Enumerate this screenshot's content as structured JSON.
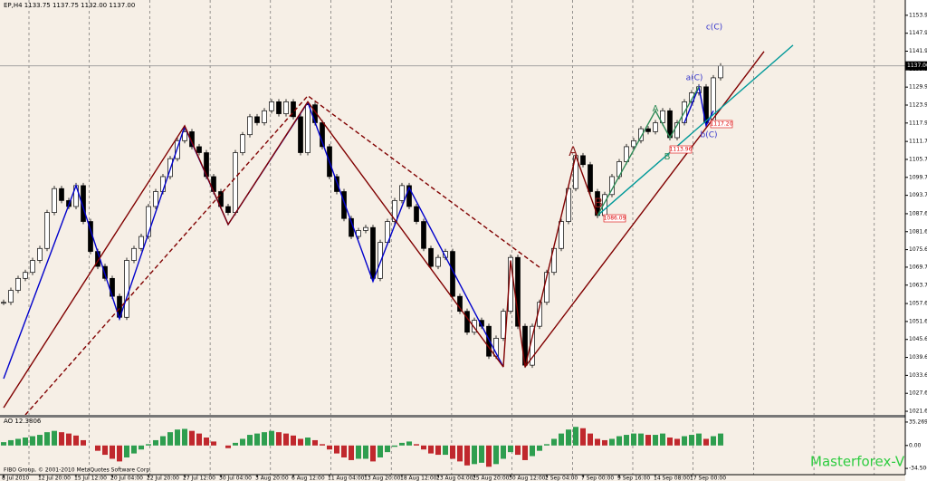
{
  "chart_data": {
    "type": "candlestick",
    "header": "EP,H4  1133.75 1137.75 1132.00 1137.00",
    "closes": [
      1058,
      1062,
      1066,
      1068,
      1072,
      1076,
      1088,
      1096,
      1092,
      1090,
      1097,
      1085,
      1075,
      1070,
      1066,
      1060,
      1053,
      1072,
      1076,
      1080,
      1090,
      1095,
      1100,
      1106,
      1112,
      1115,
      1110,
      1108,
      1100,
      1095,
      1090,
      1088,
      1108,
      1114,
      1120,
      1118,
      1122,
      1125,
      1121,
      1125,
      1120,
      1108,
      1124,
      1118,
      1110,
      1100,
      1095,
      1086,
      1080,
      1082,
      1083,
      1066,
      1078,
      1085,
      1092,
      1097,
      1090,
      1085,
      1076,
      1070,
      1073,
      1075,
      1060,
      1055,
      1048,
      1052,
      1050,
      1040,
      1046,
      1055,
      1073,
      1050,
      1037,
      1050,
      1058,
      1068,
      1076,
      1085,
      1096,
      1107,
      1104,
      1095,
      1087,
      1094,
      1100,
      1105,
      1110,
      1112,
      1116,
      1115,
      1118,
      1122,
      1113,
      1118,
      1125,
      1128,
      1130,
      1118,
      1133,
      1137
    ],
    "ylim": [
      1020.4,
      1159.0
    ],
    "yticks": [
      {
        "value": 1153.9,
        "label": "1153.90"
      },
      {
        "value": 1147.9,
        "label": "1147.90"
      },
      {
        "value": 1141.9,
        "label": "1141.90"
      },
      {
        "value": 1135.9,
        "label": "1135.90"
      },
      {
        "value": 1129.9,
        "label": "1129.90"
      },
      {
        "value": 1123.9,
        "label": "1123.90"
      },
      {
        "value": 1117.9,
        "label": "1117.90"
      },
      1111.75,
      1105.75,
      1099.75,
      1093.75,
      {
        "value": 1087.6,
        "label": "1087.60"
      },
      {
        "value": 1081.6,
        "label": "1081.60"
      },
      {
        "value": 1075.6,
        "label": "1075.60"
      },
      1069.75,
      1063.75,
      {
        "value": 1057.6,
        "label": "1057.60"
      },
      {
        "value": 1051.6,
        "label": "1051.60"
      },
      {
        "value": 1045.6,
        "label": "1045.60"
      },
      {
        "value": 1039.6,
        "label": "1039.60"
      },
      {
        "value": 1033.6,
        "label": "1033.60"
      },
      {
        "value": 1027.6,
        "label": "1027.60"
      },
      {
        "value": 1021.6,
        "label": "1021.60"
      }
    ],
    "current_price": {
      "value": 1137,
      "label": "1137.00"
    },
    "xticks": [
      {
        "value": 0,
        "label": "8 Jul 2010"
      },
      {
        "value": 5,
        "label": "12 Jul 20:00"
      },
      {
        "value": 10,
        "label": "15 Jul 12:00"
      },
      {
        "value": 15,
        "label": "20 Jul 04:00"
      },
      {
        "value": 20,
        "label": "22 Jul 20:00"
      },
      {
        "value": 25,
        "label": "27 Jul 12:00"
      },
      {
        "value": 30,
        "label": "30 Jul 04:00"
      },
      {
        "value": 35,
        "label": "3 Aug 20:00"
      },
      {
        "value": 40,
        "label": "6 Aug 12:00"
      },
      {
        "value": 45,
        "label": "11 Aug 04:00"
      },
      {
        "value": 50,
        "label": "13 Aug 20:00"
      },
      {
        "value": 55,
        "label": "18 Aug 12:00"
      },
      {
        "value": 60,
        "label": "23 Aug 04:00"
      },
      {
        "value": 65,
        "label": "25 Aug 20:00"
      },
      {
        "value": 70,
        "label": "30 Aug 12:00"
      },
      {
        "value": 75,
        "label": "2 Sep 04:00"
      },
      {
        "value": 80,
        "label": "7 Sep 00:00"
      },
      {
        "value": 85,
        "label": "9 Sep 16:00"
      },
      {
        "value": 90,
        "label": "14 Sep 08:00"
      },
      {
        "value": 95,
        "label": "17 Sep 00:00"
      }
    ],
    "overlays": [
      {
        "color": "#0000cc",
        "dashed": false,
        "x": [
          0,
          10,
          16,
          25,
          31,
          42,
          51,
          56,
          69
        ],
        "y": [
          1032.5,
          1097,
          1052.5,
          1116.7,
          1084,
          1124.8,
          1065,
          1096.3,
          1036.4
        ]
      },
      {
        "color": "#0000cc",
        "dashed": false,
        "x": [
          94,
          96,
          97,
          98
        ],
        "y": [
          1118,
          1130,
          1117,
          1122
        ]
      },
      {
        "color": "#800000",
        "dashed": false,
        "x": [
          0,
          25,
          31,
          42,
          69
        ],
        "y": [
          1022.8,
          1117,
          1084,
          1125,
          1036.4
        ]
      },
      {
        "color": "#800000",
        "dashed": false,
        "x": [
          69,
          70,
          72,
          79,
          82
        ],
        "y": [
          1036.4,
          1072,
          1036.4,
          1107,
          1087
        ]
      },
      {
        "color": "#800000",
        "dashed": false,
        "x": [
          72,
          105
        ],
        "y": [
          1036.4,
          1141.8
        ]
      },
      {
        "color": "#800000",
        "dashed": true,
        "x": [
          3,
          42,
          74
        ],
        "y": [
          1020.4,
          1127,
          1069.7
        ]
      },
      {
        "color": "#009999",
        "dashed": false,
        "x": [
          82,
          109
        ],
        "y": [
          1087,
          1143.9
        ]
      },
      {
        "color": "#2e8b57",
        "dashed": false,
        "x": [
          82,
          90,
          92,
          96
        ],
        "y": [
          1087,
          1122,
          1113,
          1130
        ]
      }
    ],
    "annotations": [
      "A",
      "B",
      "A",
      "B",
      "c(C)",
      "a(C)",
      "b(C)",
      "1086.09",
      "1113.96",
      "1117.20"
    ],
    "indicator": {
      "label": "AO 12.3806",
      "values": [
        5,
        8,
        10,
        12,
        14,
        16,
        20,
        22,
        20,
        18,
        15,
        8,
        0,
        -8,
        -14,
        -20,
        -24,
        -18,
        -12,
        -6,
        2,
        8,
        14,
        20,
        24,
        25,
        22,
        18,
        12,
        6,
        0,
        -4,
        4,
        10,
        16,
        18,
        20,
        22,
        20,
        18,
        15,
        10,
        12,
        8,
        2,
        -6,
        -12,
        -18,
        -22,
        -20,
        -20,
        -24,
        -18,
        -10,
        -2,
        4,
        6,
        2,
        -6,
        -12,
        -14,
        -14,
        -20,
        -24,
        -30,
        -28,
        -26,
        -32,
        -28,
        -20,
        -10,
        -14,
        -22,
        -16,
        -8,
        2,
        10,
        18,
        24,
        28,
        26,
        18,
        10,
        8,
        10,
        14,
        16,
        18,
        18,
        16,
        16,
        18,
        12,
        10,
        14,
        16,
        18,
        10,
        14,
        18
      ],
      "up_color": "#2e9e4f",
      "down_color": "#c0282d",
      "ylim": [
        -43.9,
        42.0
      ],
      "yticks": [
        35.269,
        {
          "value": 0,
          "label": "0.00"
        },
        -34.506
      ]
    },
    "watermark": "Masterforex-V",
    "copyright": "FIBO Group, © 2001-2010 MetaQuotes Software Corp."
  }
}
